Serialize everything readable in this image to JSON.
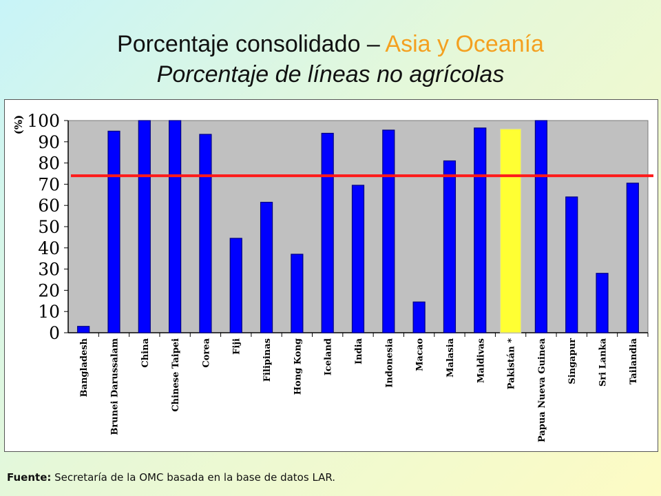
{
  "title": {
    "part1": "Porcentaje consolidado – ",
    "accent": "Asia y Oceanía",
    "subtitle": "Porcentaje de líneas no agrícolas"
  },
  "chart_data": {
    "type": "bar",
    "ylabel": "(%)",
    "ylim": [
      0,
      100
    ],
    "yticks": [
      0,
      10,
      20,
      30,
      40,
      50,
      60,
      70,
      80,
      90,
      100
    ],
    "categories": [
      "Bangladesh",
      "Brunei Darussalam",
      "China",
      "Chinese Taipei",
      "Corea",
      "Fiji",
      "Filipinas",
      "Hong Kong",
      "Iceland",
      "India",
      "Indonesia",
      "Macao",
      "Malasia",
      "Maldivas",
      "Pakistán *",
      "Papua Nueva Guinea",
      "Singapur",
      "Sri Lanka",
      "Tailandia"
    ],
    "values": [
      3,
      95,
      100,
      100,
      93.5,
      44.5,
      61.5,
      37,
      94,
      69.5,
      95.5,
      14.5,
      81,
      96.5,
      96,
      100,
      64,
      28,
      70.5
    ],
    "highlight": "Pakistán *",
    "reference_line": 74,
    "colors": {
      "bar": "#0000ff",
      "bar_outline": "#000080",
      "highlight": "#ffff33",
      "reference_line": "#ff1a1a",
      "plot_bg": "#c0c0c0"
    },
    "grid": false
  },
  "source": {
    "label": "Fuente:",
    "text": " Secretaría de la OMC basada en la base de datos LAR."
  }
}
